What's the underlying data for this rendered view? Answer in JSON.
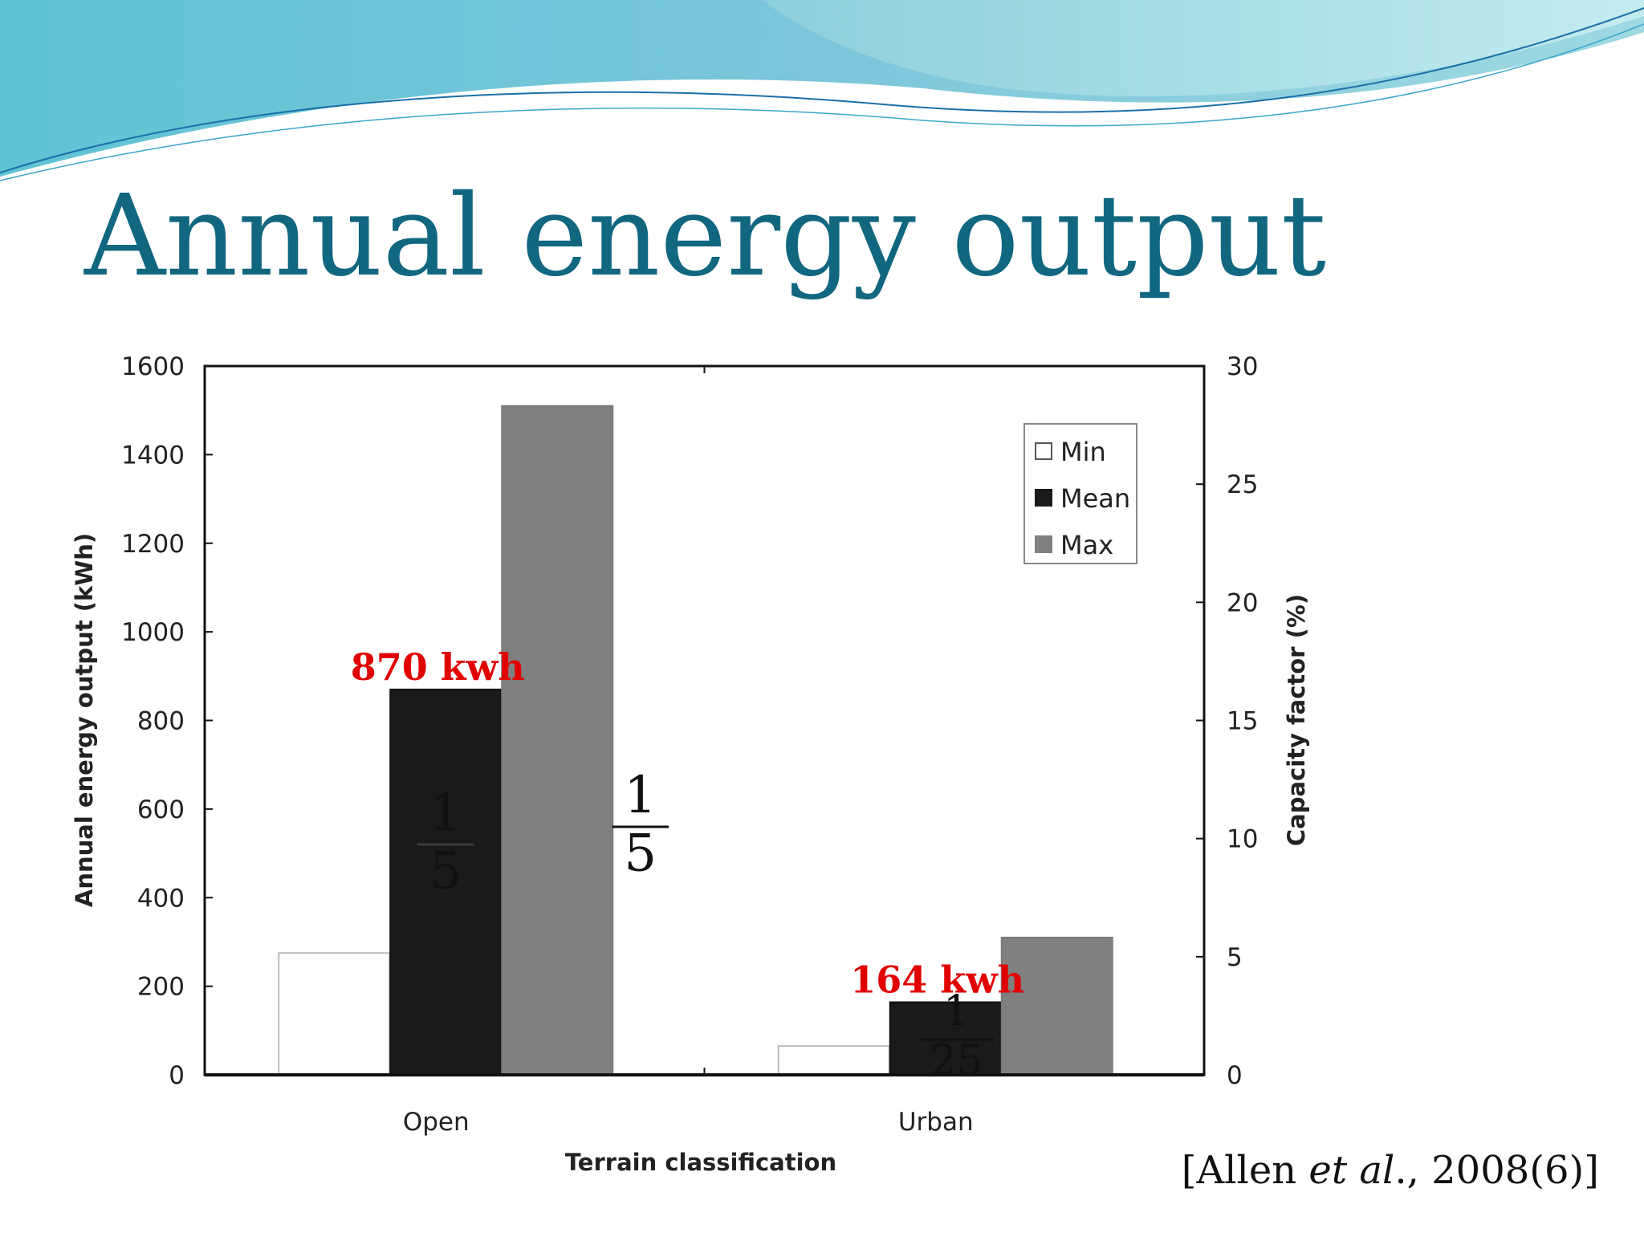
{
  "slide": {
    "title": "Annual energy output",
    "citation": {
      "prefix": "[Allen ",
      "italic": "et al",
      "suffix": "., 2008(6)]"
    }
  },
  "colors": {
    "title": "#11677f",
    "min": "#ffffff",
    "mean": "#1a1a1a",
    "max": "#808080",
    "annotation": "#e10000"
  },
  "chart_data": {
    "type": "bar",
    "xlabel": "Terrain classification",
    "ylabel": "Annual energy output (kWh)",
    "y2label": "Capacity factor (%)",
    "ylim": [
      0,
      1600
    ],
    "y_ticks": [
      0,
      200,
      400,
      600,
      800,
      1000,
      1200,
      1400,
      1600
    ],
    "y2lim": [
      0,
      30
    ],
    "y2_ticks": [
      0,
      5,
      10,
      15,
      20,
      25,
      30
    ],
    "categories": [
      "Open",
      "Urban"
    ],
    "series": [
      {
        "name": "Min",
        "values": [
          275,
          65
        ]
      },
      {
        "name": "Mean",
        "values": [
          870,
          164
        ]
      },
      {
        "name": "Max",
        "values": [
          1510,
          310
        ]
      }
    ],
    "legend_position": "top-right",
    "grid": false,
    "annotations": [
      {
        "text": "870 kwh",
        "category": "Open",
        "series": "Mean"
      },
      {
        "text": "164 kwh",
        "category": "Urban",
        "series": "Mean"
      }
    ],
    "fractions": [
      {
        "numerator": "1",
        "denominator": "5",
        "category": "Open",
        "series": "Mean"
      },
      {
        "numerator": "1",
        "denominator": "5",
        "category": "Open",
        "series": "Max"
      },
      {
        "numerator": "1",
        "denominator": "25",
        "category": "Urban",
        "series": "Mean"
      }
    ]
  }
}
